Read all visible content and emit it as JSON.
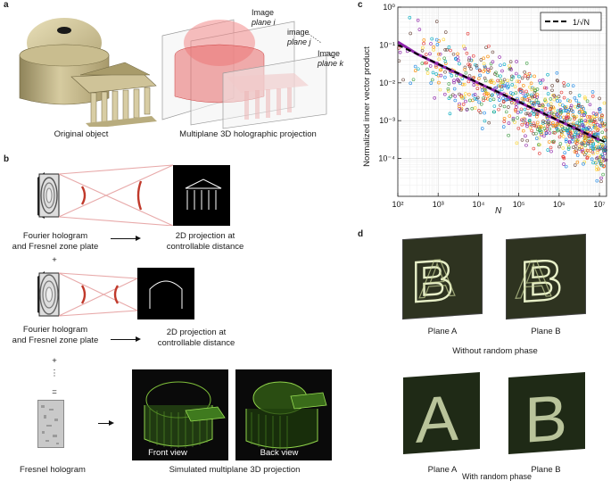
{
  "panel_a": {
    "label": "a",
    "original_caption": "Original object",
    "multiplane_caption": "Multiplane 3D holographic projection",
    "plane_i": [
      "Image",
      "plane i"
    ],
    "plane_j": [
      "image",
      "plane j"
    ],
    "plane_k": [
      "Image",
      "plane k"
    ]
  },
  "panel_b": {
    "label": "b",
    "row1_left": [
      "Fourier hologram",
      "and Fresnel zone plate"
    ],
    "row1_right": [
      "2D projection at",
      "controllable distance"
    ],
    "plus1": "+",
    "row2_left": [
      "Fourier hologram",
      "and Fresnel zone plate"
    ],
    "row2_right": [
      "2D projection at",
      "controllable distance"
    ],
    "plus2": "+",
    "dots": "⋮",
    "equals": "=",
    "fresnel_caption": "Fresnel hologram",
    "front_view": "Front view",
    "back_view": "Back view",
    "simulated_caption": "Simulated multiplane 3D projection"
  },
  "panel_c": {
    "label": "c",
    "legend": "1/√N",
    "ylabel": "Normalized inner vector product",
    "xlabel": "N"
  },
  "panel_d": {
    "label": "d",
    "planeA_1": "Plane A",
    "planeB_1": "Plane B",
    "without_caption": "Without random phase",
    "planeA_2": "Plane A",
    "planeB_2": "Plane B",
    "with_caption": "With random phase"
  },
  "chart_data": {
    "type": "scatter",
    "title": "",
    "xlabel": "N",
    "ylabel": "Normalized inner vector product",
    "x_scale": "log",
    "y_scale": "log",
    "xlim": [
      100,
      15000000
    ],
    "ylim": [
      1e-05,
      1
    ],
    "x_ticks": [
      "10^2",
      "10^3",
      "10^4",
      "10^5",
      "10^6",
      "10^7"
    ],
    "y_ticks": [
      "10^0",
      "10^-1",
      "10^-2",
      "10^-3",
      "10^-4"
    ],
    "grid": true,
    "legend_position": "top-right",
    "reference_line": {
      "name": "1/√N",
      "style": "dashed",
      "color": "#000000",
      "x": [
        100,
        15000000
      ],
      "y": [
        0.1,
        0.000258
      ]
    },
    "mean_curve": {
      "color": "#8e24aa",
      "x": [
        100,
        300,
        1000,
        3000,
        10000,
        30000,
        100000,
        300000,
        1000000,
        3000000,
        10000000
      ],
      "y": [
        0.12,
        0.058,
        0.031,
        0.018,
        0.0098,
        0.0057,
        0.0031,
        0.0018,
        0.00098,
        0.00058,
        0.00031
      ]
    },
    "scatter_colors": [
      "#e53935",
      "#fb8c00",
      "#fdd835",
      "#43a047",
      "#1e88e5",
      "#00acc1",
      "#8e24aa",
      "#6d4c41"
    ],
    "scatter_summary": "many samples scattered around 1/sqrt(N), spread roughly one decade"
  }
}
